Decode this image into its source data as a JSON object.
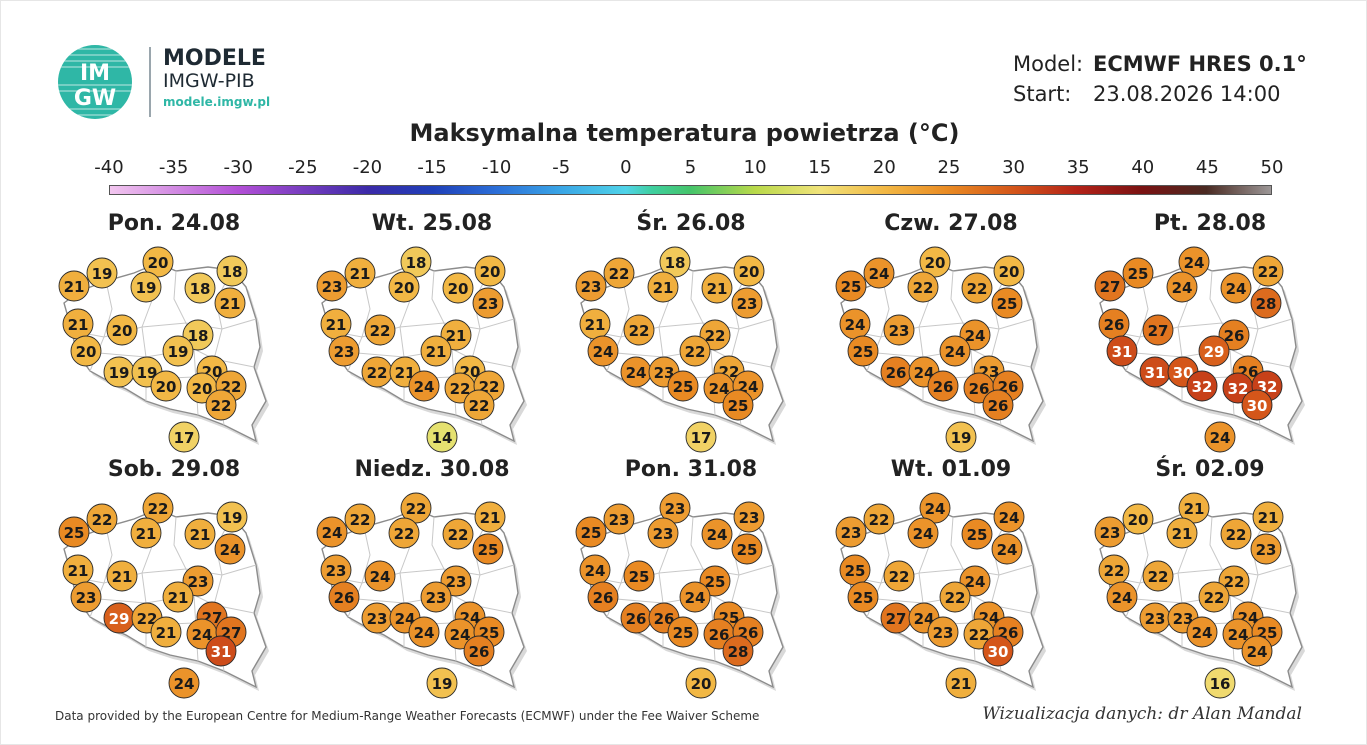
{
  "header": {
    "brand_name": "MODELE",
    "brand_sub": "IMGW-PIB",
    "brand_url": "modele.imgw.pl",
    "logo_text_top": "IM",
    "logo_text_bottom": "GW",
    "model_label": "Model:",
    "model_value": "ECMWF HRES 0.1°",
    "start_label": "Start:",
    "start_value": "23.08.2026 14:00"
  },
  "title": "Maksymalna temperatura powietrza (°C)",
  "scale": {
    "ticks": [
      "-40",
      "-35",
      "-30",
      "-25",
      "-20",
      "-15",
      "-10",
      "-5",
      "0",
      "5",
      "10",
      "15",
      "20",
      "25",
      "30",
      "35",
      "40",
      "45",
      "50"
    ],
    "stops": [
      {
        "t": -40,
        "color": "#f2c6ef"
      },
      {
        "t": -30,
        "color": "#b24fd6"
      },
      {
        "t": -20,
        "color": "#3b2aa8"
      },
      {
        "t": -15,
        "color": "#1f3fb8"
      },
      {
        "t": -10,
        "color": "#2c6fd8"
      },
      {
        "t": -5,
        "color": "#3aa6e6"
      },
      {
        "t": 0,
        "color": "#4fd3e8"
      },
      {
        "t": 2,
        "color": "#3fcf9f"
      },
      {
        "t": 5,
        "color": "#45c46a"
      },
      {
        "t": 10,
        "color": "#b9d94a"
      },
      {
        "t": 15,
        "color": "#f0e37a"
      },
      {
        "t": 20,
        "color": "#f2b845"
      },
      {
        "t": 25,
        "color": "#e98a23"
      },
      {
        "t": 30,
        "color": "#d4561a"
      },
      {
        "t": 35,
        "color": "#b32218"
      },
      {
        "t": 40,
        "color": "#7a1212"
      },
      {
        "t": 45,
        "color": "#4a2a22"
      },
      {
        "t": 50,
        "color": "#9c9797"
      }
    ]
  },
  "panels": [
    {
      "date": "Pon. 24.08",
      "values": [
        19,
        20,
        18,
        21,
        19,
        18,
        21,
        21,
        20,
        18,
        20,
        19,
        20,
        19,
        19,
        20,
        20,
        22,
        22,
        17
      ]
    },
    {
      "date": "Wt. 25.08",
      "values": [
        21,
        18,
        20,
        23,
        20,
        20,
        23,
        21,
        22,
        21,
        23,
        21,
        20,
        22,
        21,
        24,
        22,
        22,
        22,
        14
      ]
    },
    {
      "date": "Śr. 26.08",
      "values": [
        22,
        18,
        20,
        23,
        21,
        21,
        23,
        21,
        22,
        22,
        24,
        22,
        22,
        24,
        23,
        25,
        24,
        24,
        25,
        17
      ]
    },
    {
      "date": "Czw. 27.08",
      "values": [
        24,
        20,
        20,
        25,
        22,
        22,
        25,
        24,
        23,
        24,
        25,
        24,
        23,
        26,
        24,
        26,
        26,
        26,
        26,
        19
      ]
    },
    {
      "date": "Pt. 28.08",
      "values": [
        25,
        24,
        22,
        27,
        24,
        24,
        28,
        26,
        27,
        26,
        31,
        29,
        26,
        31,
        30,
        32,
        32,
        32,
        30,
        24
      ]
    },
    {
      "date": "Sob. 29.08",
      "values": [
        22,
        22,
        19,
        25,
        21,
        21,
        24,
        21,
        21,
        23,
        23,
        21,
        27,
        29,
        22,
        21,
        24,
        27,
        31,
        24
      ]
    },
    {
      "date": "Niedz. 30.08",
      "values": [
        22,
        22,
        21,
        24,
        22,
        22,
        25,
        23,
        24,
        23,
        26,
        23,
        24,
        23,
        24,
        24,
        24,
        25,
        26,
        19
      ]
    },
    {
      "date": "Pon. 31.08",
      "values": [
        23,
        23,
        23,
        25,
        23,
        24,
        25,
        24,
        25,
        25,
        26,
        24,
        25,
        26,
        26,
        25,
        26,
        26,
        28,
        20
      ]
    },
    {
      "date": "Wt. 01.09",
      "values": [
        22,
        24,
        24,
        23,
        24,
        25,
        24,
        25,
        22,
        24,
        25,
        22,
        24,
        27,
        24,
        23,
        22,
        26,
        30,
        21
      ]
    },
    {
      "date": "Śr. 02.09",
      "values": [
        20,
        21,
        21,
        23,
        21,
        22,
        23,
        22,
        22,
        22,
        24,
        22,
        24,
        23,
        23,
        24,
        24,
        25,
        24,
        16
      ]
    }
  ],
  "footer": {
    "credit": "Data provided by the European Centre for Medium-Range Weather Forecasts (ECMWF) under the Fee Waiver Scheme",
    "viz": "Wizualizacja danych: dr Alan Mandal"
  }
}
